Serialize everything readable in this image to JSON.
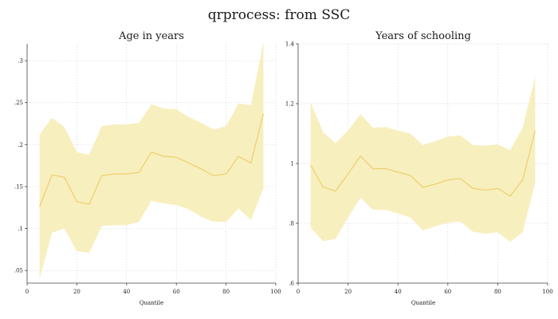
{
  "figure": {
    "title": "qrprocess: from SSC",
    "band_color": "#f8efbf",
    "line_color": "#ecd270"
  },
  "chart_data": [
    {
      "type": "area",
      "title": "Age in years",
      "xlabel": "Quantile",
      "ylabel": "",
      "xlim": [
        0,
        100
      ],
      "ylim": [
        0.035,
        0.32
      ],
      "xticks": [
        0,
        20,
        40,
        60,
        80,
        100
      ],
      "xtick_labels": [
        "0",
        "20",
        "40",
        "60",
        "80",
        "100"
      ],
      "yticks": [
        0.05,
        0.1,
        0.15,
        0.2,
        0.25,
        0.3
      ],
      "ytick_labels": [
        ".05",
        ".1",
        ".15",
        ".2",
        ".25",
        ".3"
      ],
      "grid": true,
      "x": [
        5,
        10,
        15,
        20,
        25,
        30,
        35,
        40,
        45,
        50,
        55,
        60,
        65,
        70,
        75,
        80,
        85,
        90,
        95
      ],
      "series": [
        {
          "estimate": [
            0.126,
            0.164,
            0.161,
            0.132,
            0.129,
            0.163,
            0.165,
            0.165,
            0.167,
            0.191,
            0.186,
            0.185,
            0.178,
            0.171,
            0.163,
            0.165,
            0.186,
            0.178,
            0.237
          ],
          "lower": [
            0.04,
            0.095,
            0.1,
            0.073,
            0.071,
            0.103,
            0.104,
            0.104,
            0.108,
            0.133,
            0.13,
            0.128,
            0.123,
            0.114,
            0.108,
            0.108,
            0.124,
            0.11,
            0.148
          ],
          "upper": [
            0.212,
            0.232,
            0.221,
            0.191,
            0.188,
            0.222,
            0.224,
            0.224,
            0.226,
            0.248,
            0.243,
            0.242,
            0.233,
            0.226,
            0.218,
            0.222,
            0.249,
            0.247,
            0.322
          ]
        }
      ]
    },
    {
      "type": "area",
      "title": "Years of schooling",
      "xlabel": "Quantile",
      "ylabel": "",
      "xlim": [
        0,
        100
      ],
      "ylim": [
        0.6,
        1.4
      ],
      "xticks": [
        0,
        20,
        40,
        60,
        80,
        100
      ],
      "xtick_labels": [
        "0",
        "20",
        "40",
        "60",
        "80",
        "100"
      ],
      "yticks": [
        0.6,
        0.8,
        1.0,
        1.2,
        1.4
      ],
      "ytick_labels": [
        ".6",
        ".8",
        "1",
        "1.2",
        "1.4"
      ],
      "grid": true,
      "x": [
        5,
        10,
        15,
        20,
        25,
        30,
        35,
        40,
        45,
        50,
        55,
        60,
        65,
        70,
        75,
        80,
        85,
        90,
        95
      ],
      "series": [
        {
          "estimate": [
            0.995,
            0.921,
            0.908,
            0.965,
            1.025,
            0.982,
            0.983,
            0.971,
            0.96,
            0.92,
            0.931,
            0.945,
            0.95,
            0.917,
            0.911,
            0.917,
            0.891,
            0.945,
            1.11
          ],
          "lower": [
            0.785,
            0.74,
            0.748,
            0.82,
            0.885,
            0.845,
            0.845,
            0.833,
            0.82,
            0.776,
            0.79,
            0.802,
            0.806,
            0.772,
            0.765,
            0.77,
            0.738,
            0.77,
            0.935
          ],
          "upper": [
            1.205,
            1.105,
            1.068,
            1.11,
            1.165,
            1.12,
            1.122,
            1.11,
            1.1,
            1.062,
            1.075,
            1.09,
            1.094,
            1.062,
            1.06,
            1.064,
            1.045,
            1.12,
            1.29
          ]
        }
      ]
    }
  ]
}
